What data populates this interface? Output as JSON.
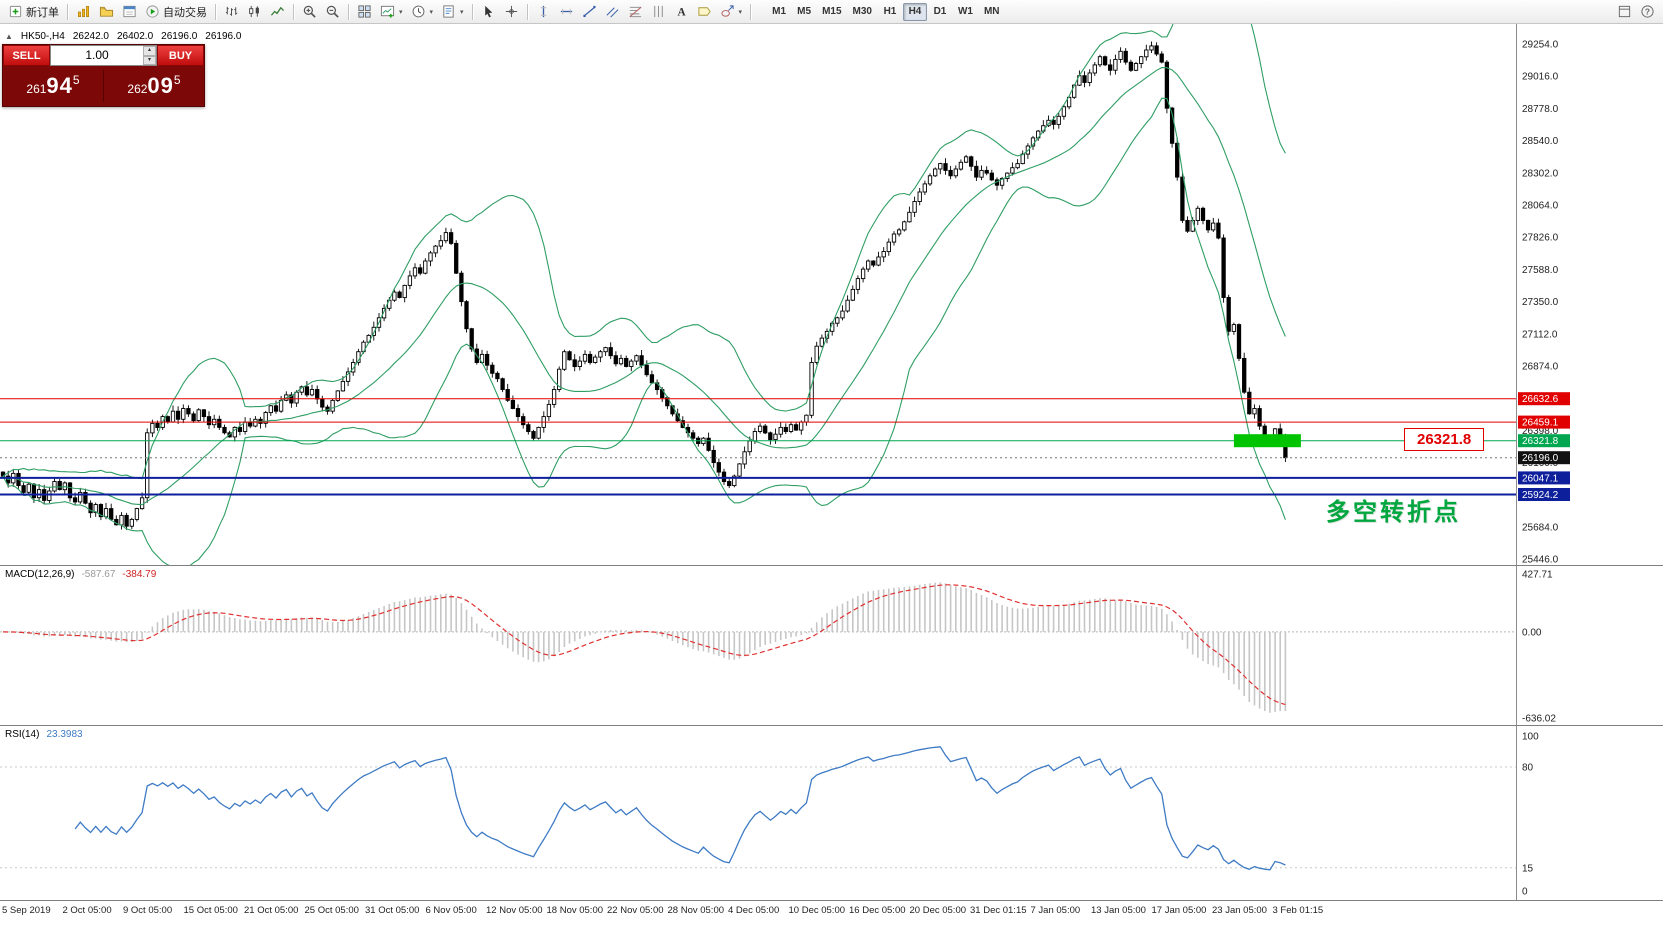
{
  "toolbar": {
    "caret_glyph": "▾",
    "items": [
      {
        "name": "new-order-button",
        "icon": "new-order",
        "label": "新订单"
      },
      {
        "sep": true
      },
      {
        "name": "market-watch-button",
        "icon": "market-watch"
      },
      {
        "name": "profiles-button",
        "icon": "profiles"
      },
      {
        "name": "data-window-button",
        "icon": "data-window"
      },
      {
        "name": "autotrading-button",
        "icon": "autotrading",
        "label": "自动交易"
      },
      {
        "sep": true
      },
      {
        "name": "bar-chart-button",
        "icon": "bars"
      },
      {
        "name": "candlestick-chart-button",
        "icon": "candles"
      },
      {
        "name": "line-chart-button",
        "icon": "linechart"
      },
      {
        "sep": true
      },
      {
        "name": "zoom-in-button",
        "icon": "zoom-in"
      },
      {
        "name": "zoom-out-button",
        "icon": "zoom-out"
      },
      {
        "sep": true
      },
      {
        "name": "tile-windows-button",
        "icon": "tile"
      },
      {
        "name": "new-chart-button",
        "icon": "new-chart",
        "caret": true
      },
      {
        "name": "periods-button",
        "icon": "period",
        "caret": true
      },
      {
        "name": "templates-button",
        "icon": "template",
        "caret": true
      },
      {
        "sep": true
      },
      {
        "name": "cursor-button",
        "icon": "cursor"
      },
      {
        "name": "crosshair-button",
        "icon": "crosshair"
      },
      {
        "sep": true
      },
      {
        "name": "vertical-line-button",
        "icon": "vline"
      },
      {
        "name": "horizontal-line-button",
        "icon": "hline"
      },
      {
        "name": "trendline-button",
        "icon": "trend"
      },
      {
        "name": "equidistant-channel-button",
        "icon": "channel"
      },
      {
        "name": "fibonacci-button",
        "icon": "fibo"
      },
      {
        "name": "cycle-lines-button",
        "icon": "cycles"
      },
      {
        "name": "text-button",
        "icon": "text"
      },
      {
        "name": "text-label-button",
        "icon": "label"
      },
      {
        "name": "arrows-button",
        "icon": "shapes",
        "caret": true
      },
      {
        "sep": true
      }
    ],
    "timeframes": [
      "M1",
      "M5",
      "M15",
      "M30",
      "H1",
      "H4",
      "D1",
      "W1",
      "MN"
    ],
    "active_timeframe": "H4",
    "right_icons": [
      "fullscreen",
      "help"
    ]
  },
  "chart": {
    "symbol_info": {
      "toggle_glyph": "▲",
      "title": "HK50-,H4",
      "open": "26242.0",
      "high": "26402.0",
      "low": "26196.0",
      "close": "26196.0"
    },
    "trade_panel": {
      "sell_label": "SELL",
      "buy_label": "BUY",
      "volume": "1.00",
      "spin_up": "▴",
      "spin_down": "▾",
      "sell_price": {
        "int": "261",
        "pips": "94",
        "frac": "5"
      },
      "buy_price": {
        "int": "262",
        "pips": "09",
        "frac": "5"
      }
    },
    "annotations": {
      "price_callout": "26321.8",
      "note_text": "多空转折点",
      "note_color": "#00a63e"
    }
  },
  "chart_data": {
    "type": "candlestick",
    "symbol": "HK50-",
    "timeframe": "H4",
    "first_open": 26090,
    "closes": [
      26060,
      26010,
      26080,
      25990,
      25940,
      26000,
      25900,
      25960,
      25880,
      25950,
      26020,
      25960,
      26010,
      25900,
      25870,
      25940,
      25860,
      25790,
      25850,
      25760,
      25820,
      25740,
      25700,
      25770,
      25690,
      25740,
      25820,
      25900,
      26380,
      26450,
      26420,
      26500,
      26460,
      26540,
      26480,
      26560,
      26520,
      26470,
      26550,
      26500,
      26440,
      26480,
      26420,
      26380,
      26350,
      26420,
      26390,
      26460,
      26430,
      26480,
      26450,
      26530,
      26580,
      26540,
      26620,
      26660,
      26600,
      26680,
      26720,
      26660,
      26700,
      26630,
      26570,
      26540,
      26620,
      26690,
      26760,
      26830,
      26900,
      26980,
      27050,
      27100,
      27160,
      27230,
      27300,
      27360,
      27420,
      27380,
      27470,
      27540,
      27600,
      27560,
      27650,
      27710,
      27760,
      27800,
      27860,
      27780,
      27560,
      27350,
      27150,
      27000,
      26900,
      26960,
      26880,
      26820,
      26780,
      26700,
      26620,
      26560,
      26500,
      26440,
      26390,
      26340,
      26420,
      26500,
      26590,
      26700,
      26850,
      26980,
      26920,
      26870,
      26910,
      26960,
      26900,
      26940,
      26980,
      27010,
      26950,
      26890,
      26930,
      26870,
      26910,
      26950,
      26880,
      26810,
      26750,
      26700,
      26640,
      26580,
      26520,
      26470,
      26420,
      26380,
      26340,
      26300,
      26340,
      26250,
      26160,
      26090,
      26020,
      25990,
      26060,
      26150,
      26240,
      26320,
      26390,
      26430,
      26380,
      26330,
      26370,
      26420,
      26390,
      26440,
      26400,
      26460,
      26510,
      26900,
      27020,
      27080,
      27130,
      27190,
      27230,
      27280,
      27360,
      27440,
      27520,
      27590,
      27650,
      27620,
      27680,
      27720,
      27790,
      27850,
      27880,
      27940,
      28010,
      28090,
      28160,
      28220,
      28280,
      28330,
      28370,
      28320,
      28280,
      28330,
      28380,
      28420,
      28350,
      28270,
      28320,
      28300,
      28250,
      28210,
      28260,
      28300,
      28340,
      28370,
      28440,
      28500,
      28560,
      28610,
      28650,
      28690,
      28660,
      28720,
      28790,
      28860,
      28950,
      29020,
      28970,
      29040,
      29100,
      29160,
      29100,
      29060,
      29140,
      29200,
      29120,
      29060,
      29110,
      29160,
      29210,
      29240,
      29180,
      29120,
      28780,
      28520,
      28270,
      27950,
      27870,
      27950,
      28040,
      27950,
      27880,
      27930,
      27820,
      27380,
      27130,
      27180,
      26930,
      26680,
      26520,
      26560,
      26430,
      26350,
      26300,
      26410,
      26340,
      26196
    ],
    "y_axis": {
      "top_price": 29402,
      "bottom_price": 25403,
      "ticks": [
        29254,
        29016,
        28778,
        28540,
        28302,
        28064,
        27826,
        27588,
        27350,
        27112,
        26874,
        26398,
        26160,
        25684,
        25446
      ]
    },
    "x_labels": [
      "5 Sep 2019",
      "2 Oct 05:00",
      "9 Oct 05:00",
      "15 Oct 05:00",
      "21 Oct 05:00",
      "25 Oct 05:00",
      "31 Oct 05:00",
      "6 Nov 05:00",
      "12 Nov 05:00",
      "18 Nov 05:00",
      "22 Nov 05:00",
      "28 Nov 05:00",
      "4 Dec 05:00",
      "10 Dec 05:00",
      "16 Dec 05:00",
      "20 Dec 05:00",
      "31 Dec 01:15",
      "7 Jan 05:00",
      "13 Jan 05:00",
      "17 Jan 05:00",
      "23 Jan 05:00",
      "3 Feb 01:15"
    ],
    "levels": [
      {
        "value": 26632.6,
        "color": "#e00000",
        "style": "solid",
        "width": 1
      },
      {
        "value": 26459.1,
        "color": "#e00000",
        "style": "solid",
        "width": 1
      },
      {
        "value": 26321.8,
        "color": "#00a650",
        "style": "solid",
        "width": 1
      },
      {
        "value": 26196.0,
        "color": "#777777",
        "style": "dotted",
        "width": 1,
        "label_bg": "#111111"
      },
      {
        "value": 26047.1,
        "color": "#0e1f9c",
        "style": "solid",
        "width": 2
      },
      {
        "value": 25924.2,
        "color": "#0e1f9c",
        "style": "solid",
        "width": 2
      }
    ],
    "highlight_box": {
      "price": 26321.8,
      "start_index": 239,
      "end_index": 252,
      "color": "#00c400"
    },
    "indicators": {
      "bollinger": {
        "period": 20,
        "deviation": 2,
        "color": "#2f9e63"
      },
      "macd": {
        "fast": 12,
        "slow": 26,
        "signal": 9
      },
      "rsi": {
        "period": 14
      }
    }
  },
  "macd": {
    "label": "MACD(12,26,9)",
    "value_main": "-587.67",
    "value_signal": "-384.79",
    "range": {
      "max": 427.71,
      "min": -636.02
    },
    "ticks": [
      "427.71",
      "0.00",
      "-636.02"
    ],
    "hist_color": "#c6c6c6",
    "signal_color": "#e03131"
  },
  "rsi": {
    "label": "RSI(14)",
    "value": "23.3983",
    "line_color": "#3e7bc4",
    "levels": [
      80,
      15
    ],
    "ticks": [
      {
        "v": 100,
        "t": "100"
      },
      {
        "v": 80,
        "t": "80"
      },
      {
        "v": 15,
        "t": "15"
      },
      {
        "v": 0,
        "t": "0"
      }
    ]
  }
}
